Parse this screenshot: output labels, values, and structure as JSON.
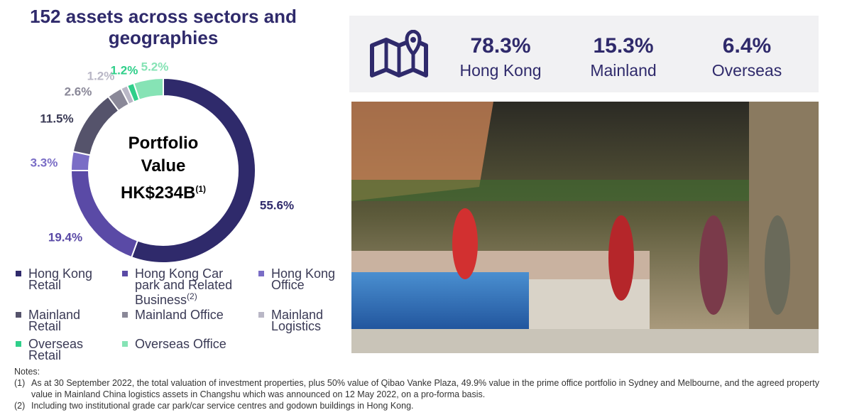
{
  "chart_data": {
    "type": "donut",
    "title": "152 assets across sectors and geographies",
    "center_label": "Portfolio Value",
    "center_value": "HK$234B",
    "center_note": "(1)",
    "categories": [
      "Hong Kong Retail",
      "Hong Kong Car park and Related Business",
      "Hong Kong Office",
      "Mainland Retail",
      "Mainland Office",
      "Mainland Logistics",
      "Overseas Retail",
      "Overseas Office"
    ],
    "category_notes": [
      null,
      "(2)",
      null,
      null,
      null,
      null,
      null,
      null
    ],
    "values": [
      55.6,
      19.4,
      3.3,
      11.5,
      2.6,
      1.2,
      1.2,
      5.2
    ],
    "value_labels": [
      "55.6%",
      "19.4%",
      "3.3%",
      "11.5%",
      "2.6%",
      "1.2%",
      "1.2%",
      "5.2%"
    ],
    "colors": [
      "#2f2a6b",
      "#5a4aa6",
      "#7a6dc6",
      "#55536b",
      "#8a8898",
      "#b9b7c6",
      "#2fcf8a",
      "#86e3b5"
    ]
  },
  "stats": [
    {
      "value": "78.3%",
      "label": "Hong Kong"
    },
    {
      "value": "15.3%",
      "label": "Mainland"
    },
    {
      "value": "6.4%",
      "label": "Overseas"
    }
  ],
  "notes": {
    "heading": "Notes:",
    "items": [
      {
        "mark": "(1)",
        "text": "As at 30 September 2022, the total valuation of investment properties, plus 50% value of Qibao Vanke Plaza, 49.9% value in the prime office portfolio in Sydney and Melbourne, and the agreed property value in Mainland China logistics assets in Changshu which was announced on 12 May 2022, on a pro-forma basis."
      },
      {
        "mark": "(2)",
        "text": "Including two institutional grade car park/car service centres and godown buildings in Hong Kong."
      }
    ]
  }
}
